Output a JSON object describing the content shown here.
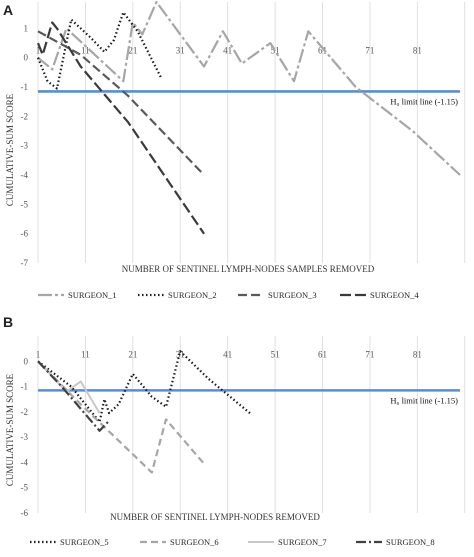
{
  "chart_data": [
    {
      "panel": "A",
      "type": "line",
      "xlabel": "NUMBER OF SENTINEL LYMPH-NODES SAMPLES REMOVED",
      "ylabel": "CUMULATIVE-SUM SCORE",
      "x_ticks": [
        1,
        11,
        21,
        31,
        41,
        51,
        61,
        71,
        81
      ],
      "y_ticks": [
        1,
        0,
        -1,
        -2,
        -3,
        -4,
        -5,
        -6,
        -7
      ],
      "xlim": [
        1,
        90
      ],
      "ylim": [
        -7,
        1.9
      ],
      "grid": "vertical",
      "legend_position": "bottom",
      "limit_line": {
        "value": -1.15,
        "label": "H₀ limit line (-1.15)",
        "color": "#5b8ec9"
      },
      "series": [
        {
          "name": "SURGEON_1",
          "color": "#a6a6a6",
          "dash": "14,3,3,3",
          "width": 2.2,
          "points": [
            [
              1,
              0
            ],
            [
              4,
              -0.4
            ],
            [
              7,
              1.0
            ],
            [
              10,
              0.55
            ],
            [
              13,
              0.1
            ],
            [
              16,
              -0.35
            ],
            [
              19,
              -0.8
            ],
            [
              21,
              1.2
            ],
            [
              23,
              0.8
            ],
            [
              26,
              1.9
            ],
            [
              31,
              0.8
            ],
            [
              36,
              -0.3
            ],
            [
              40,
              0.9
            ],
            [
              44,
              -0.2
            ],
            [
              50,
              0.5
            ],
            [
              55,
              -0.8
            ],
            [
              58,
              0.9
            ],
            [
              68,
              -1.0
            ],
            [
              80,
              -2.5
            ],
            [
              90,
              -4.0
            ]
          ]
        },
        {
          "name": "SURGEON_2",
          "color": "#1a1a1a",
          "dash": "1.5,2.5",
          "width": 2.2,
          "points": [
            [
              1,
              0
            ],
            [
              3,
              -0.8
            ],
            [
              5,
              -1.05
            ],
            [
              8,
              1.3
            ],
            [
              12,
              0.7
            ],
            [
              15,
              0.2
            ],
            [
              17,
              0.6
            ],
            [
              19,
              1.55
            ],
            [
              22,
              0.9
            ],
            [
              27,
              -0.7
            ]
          ]
        },
        {
          "name": "SURGEON_3",
          "color": "#595959",
          "dash": "9,4",
          "width": 2.2,
          "points": [
            [
              1,
              0.9
            ],
            [
              10,
              0.1
            ],
            [
              20,
              -1.3
            ],
            [
              36,
              -4.0
            ]
          ]
        },
        {
          "name": "SURGEON_4",
          "color": "#3a3a3a",
          "dash": "11,4",
          "width": 2.2,
          "points": [
            [
              1,
              0.5
            ],
            [
              2,
              0.1
            ],
            [
              4,
              1.2
            ],
            [
              5,
              1.0
            ],
            [
              10,
              -0.3
            ],
            [
              20,
              -2.2
            ],
            [
              36,
              -6.0
            ]
          ]
        }
      ]
    },
    {
      "panel": "B",
      "type": "line",
      "xlabel": "NUMBER OF SENTINEL LYMPH-NODES REMOVED",
      "ylabel": "CUMULATIVE-SUM SCORE",
      "x_ticks": [
        1,
        11,
        21,
        31,
        41,
        51,
        61,
        71,
        81
      ],
      "y_ticks": [
        0,
        -1,
        -2,
        -3,
        -4,
        -5,
        -6
      ],
      "xlim": [
        1,
        90
      ],
      "ylim": [
        -6,
        1
      ],
      "grid": "vertical",
      "legend_position": "bottom",
      "limit_line": {
        "value": -1.15,
        "label": "H₀ limit line (-1.15)",
        "color": "#5b8ec9"
      },
      "series": [
        {
          "name": "SURGEON_5",
          "color": "#1a1a1a",
          "dash": "1.5,2.5",
          "width": 2.2,
          "points": [
            [
              1,
              0
            ],
            [
              8,
              -1.0
            ],
            [
              14,
              -2.4
            ],
            [
              15,
              -1.5
            ],
            [
              16,
              -2.05
            ],
            [
              18,
              -1.7
            ],
            [
              21,
              -0.5
            ],
            [
              25,
              -1.4
            ],
            [
              28,
              -1.8
            ],
            [
              31,
              0.4
            ],
            [
              37,
              -0.7
            ],
            [
              46,
              -2.1
            ]
          ]
        },
        {
          "name": "SURGEON_6",
          "color": "#a6a6a6",
          "dash": "7,4",
          "width": 2.2,
          "points": [
            [
              1,
              0
            ],
            [
              10,
              -1.7
            ],
            [
              25,
              -4.4
            ],
            [
              28,
              -2.3
            ],
            [
              36,
              -4.05
            ]
          ]
        },
        {
          "name": "SURGEON_7",
          "color": "#c8c8c8",
          "dash": "",
          "width": 2.0,
          "points": [
            [
              1,
              0
            ],
            [
              7,
              -1.2
            ],
            [
              10,
              -0.8
            ],
            [
              14,
              -2.05
            ]
          ]
        },
        {
          "name": "SURGEON_8",
          "color": "#404040",
          "dash": "10,3,2,3",
          "width": 2.2,
          "points": [
            [
              1,
              0
            ],
            [
              6,
              -1.0
            ],
            [
              14,
              -2.75
            ],
            [
              16,
              -2.35
            ]
          ]
        }
      ]
    }
  ]
}
